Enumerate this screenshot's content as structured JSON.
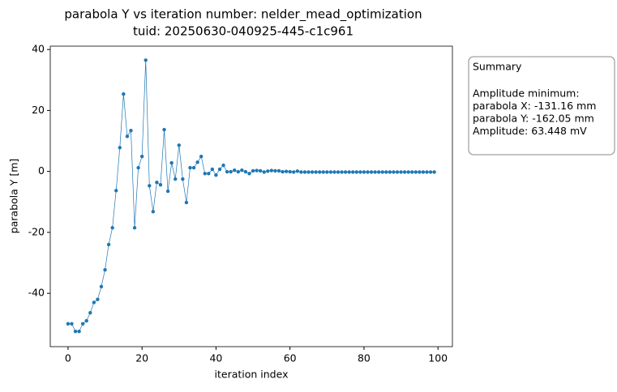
{
  "chart_data": {
    "type": "line",
    "title": "parabola Y vs iteration number: nelder_mead_optimization",
    "subtitle": "tuid: 20250630-040925-445-c1c961",
    "x_label": "iteration index",
    "y_label": "parabola Y [m]",
    "x": [
      0,
      1,
      2,
      3,
      4,
      5,
      6,
      7,
      8,
      9,
      10,
      11,
      12,
      13,
      14,
      15,
      16,
      17,
      18,
      19,
      20,
      21,
      22,
      23,
      24,
      25,
      26,
      27,
      28,
      29,
      30,
      31,
      32,
      33,
      34,
      35,
      36,
      37,
      38,
      39,
      40,
      41,
      42,
      43,
      44,
      45,
      46,
      47,
      48,
      49,
      50,
      51,
      52,
      53,
      54,
      55,
      56,
      57,
      58,
      59,
      60,
      61,
      62,
      63,
      64,
      65,
      66,
      67,
      68,
      69,
      70,
      71,
      72,
      73,
      74,
      75,
      76,
      77,
      78,
      79,
      80,
      81,
      82,
      83,
      84,
      85,
      86,
      87,
      88,
      89,
      90,
      91,
      92,
      93,
      94,
      95,
      96,
      97,
      98,
      99
    ],
    "series": [
      {
        "name": "parabola Y",
        "color": "#1f77b4",
        "values": [
          -50,
          -50,
          -52.5,
          -52.5,
          -50,
          -49,
          -46.4,
          -43,
          -42,
          -37.8,
          -32.3,
          -24,
          -18.5,
          -6.3,
          7.8,
          25.4,
          11.5,
          13.4,
          -18.5,
          1.2,
          4.9,
          36.5,
          -4.7,
          -13.2,
          -3.6,
          -4.4,
          13.7,
          -6.5,
          2.8,
          -2.5,
          8.6,
          -2.5,
          -10.2,
          1.2,
          1.2,
          3,
          4.9,
          -0.7,
          -0.7,
          0.7,
          -1.2,
          0.7,
          2,
          -0.1,
          -0.1,
          0.4,
          -0.1,
          0.4,
          -0.1,
          -0.7,
          0.2,
          0.3,
          0.2,
          -0.2,
          0.1,
          0.3,
          0.2,
          0.2,
          -0.1,
          0,
          -0.1,
          -0.2,
          0.1,
          -0.2,
          -0.2,
          -0.2,
          -0.2,
          -0.2,
          -0.2,
          -0.2,
          -0.2,
          -0.2,
          -0.2,
          -0.2,
          -0.2,
          -0.2,
          -0.2,
          -0.2,
          -0.2,
          -0.2,
          -0.2,
          -0.2,
          -0.2,
          -0.2,
          -0.2,
          -0.2,
          -0.2,
          -0.2,
          -0.2,
          -0.2,
          -0.2,
          -0.2,
          -0.2,
          -0.2,
          -0.2,
          -0.2,
          -0.2,
          -0.2,
          -0.2,
          -0.2
        ]
      }
    ],
    "xlim": [
      -4.8,
      103.9
    ],
    "xticks": [
      0,
      20,
      40,
      60,
      80,
      100
    ],
    "ylim": [
      -57.5,
      41.1
    ],
    "yticks": [
      -40,
      -20,
      0,
      20,
      40
    ],
    "annotation": {
      "title": "Summary",
      "lines": [
        "Amplitude minimum:",
        "parabola X: -131.16 mm",
        "parabola Y: -162.05 mm",
        "Amplitude: 63.448 mV"
      ]
    }
  }
}
